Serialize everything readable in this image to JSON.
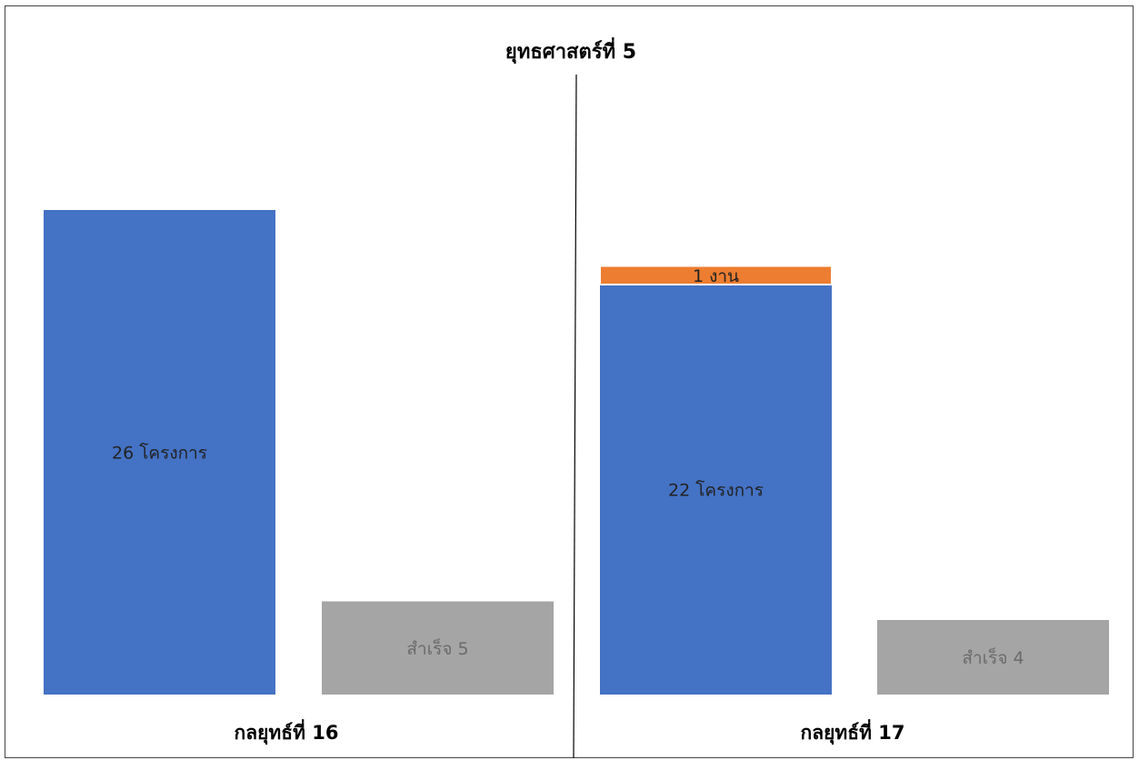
{
  "chart_data": {
    "type": "bar",
    "title": "ยุทธศาสตร์ที่ 5",
    "groups": [
      {
        "category": "กลยุทธ์ที่ 16",
        "bars": [
          {
            "segments": [
              {
                "value": 26,
                "label": "26 โครงการ",
                "color": "#4472C4",
                "label_color": "#222222"
              }
            ]
          },
          {
            "segments": [
              {
                "value": 5,
                "label": "สำเร็จ 5",
                "color": "#A5A5A5",
                "label_color": "#6b6b6b"
              }
            ]
          }
        ]
      },
      {
        "category": "กลยุทธ์ที่ 17",
        "bars": [
          {
            "segments": [
              {
                "value": 22,
                "label": "22 โครงการ",
                "color": "#4472C4",
                "label_color": "#222222"
              },
              {
                "value": 1,
                "label": "1 งาน",
                "color": "#ED7D31",
                "label_color": "#222222"
              }
            ]
          },
          {
            "segments": [
              {
                "value": 4,
                "label": "สำเร็จ 4",
                "color": "#A5A5A5",
                "label_color": "#6b6b6b"
              }
            ]
          }
        ]
      }
    ]
  }
}
